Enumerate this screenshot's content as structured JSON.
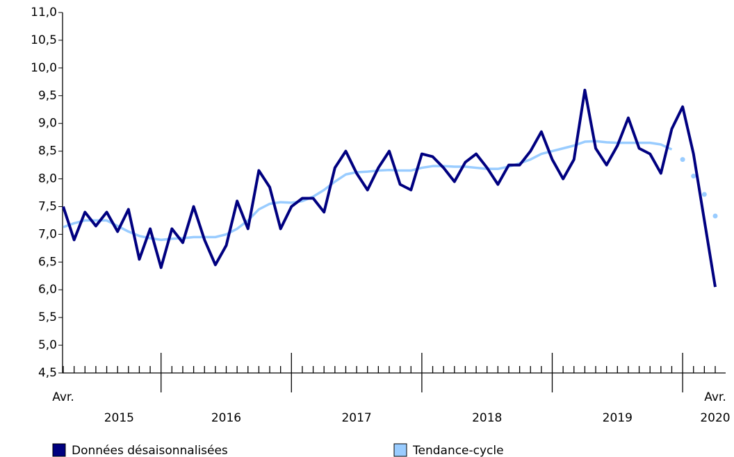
{
  "chart_data": {
    "type": "line",
    "categories": [
      "Avr.",
      null,
      null,
      null,
      null,
      null,
      null,
      null,
      null,
      null,
      null,
      null,
      null,
      null,
      null,
      null,
      null,
      null,
      null,
      null,
      null,
      null,
      null,
      null,
      null,
      null,
      null,
      null,
      null,
      null,
      null,
      null,
      null,
      null,
      null,
      null,
      null,
      null,
      null,
      null,
      null,
      null,
      null,
      null,
      null,
      null,
      null,
      null,
      null,
      null,
      null,
      null,
      null,
      null,
      null,
      null,
      null,
      null,
      null,
      null,
      "Avr."
    ],
    "years": [
      "2015",
      "2016",
      "2017",
      "2018",
      "2019",
      "2020"
    ],
    "series": [
      {
        "name": "Données désaisonnalisées",
        "color": "#000080",
        "values": [
          7.5,
          6.9,
          7.4,
          7.15,
          7.4,
          7.05,
          7.45,
          6.55,
          7.1,
          6.4,
          7.1,
          6.85,
          7.5,
          6.9,
          6.45,
          6.8,
          7.6,
          7.1,
          8.15,
          7.85,
          7.1,
          7.5,
          7.65,
          7.65,
          7.4,
          8.2,
          8.5,
          8.1,
          7.8,
          8.2,
          8.5,
          7.9,
          7.8,
          8.45,
          8.4,
          8.2,
          7.95,
          8.3,
          8.45,
          8.2,
          7.9,
          8.25,
          8.25,
          8.5,
          8.85,
          8.35,
          8.0,
          8.35,
          9.6,
          8.55,
          8.25,
          8.6,
          9.1,
          8.55,
          8.45,
          8.1,
          8.9,
          9.3,
          8.45,
          7.25,
          6.05
        ]
      },
      {
        "name": "Tendance-cycle",
        "color": "#99ccff",
        "dotted_from": 57,
        "values": [
          7.13,
          7.2,
          7.25,
          7.25,
          7.25,
          7.15,
          7.05,
          6.97,
          6.93,
          6.9,
          6.92,
          6.93,
          6.95,
          6.95,
          6.95,
          7.0,
          7.1,
          7.25,
          7.45,
          7.55,
          7.58,
          7.57,
          7.6,
          7.68,
          7.8,
          7.95,
          8.08,
          8.12,
          8.13,
          8.15,
          8.16,
          8.15,
          8.15,
          8.2,
          8.23,
          8.23,
          8.22,
          8.22,
          8.2,
          8.18,
          8.18,
          8.22,
          8.28,
          8.35,
          8.45,
          8.5,
          8.55,
          8.6,
          8.67,
          8.68,
          8.66,
          8.65,
          8.65,
          8.65,
          8.65,
          8.62,
          8.53,
          8.35,
          8.05,
          7.72,
          7.33
        ]
      }
    ],
    "ylim": [
      4.5,
      11.0
    ],
    "yticks": [
      {
        "value": 4.5,
        "label": "4,5"
      },
      {
        "value": 5.0,
        "label": "5,0"
      },
      {
        "value": 5.5,
        "label": "5,5"
      },
      {
        "value": 6.0,
        "label": "6,0"
      },
      {
        "value": 6.5,
        "label": "6,5"
      },
      {
        "value": 7.0,
        "label": "7,0"
      },
      {
        "value": 7.5,
        "label": "7,5"
      },
      {
        "value": 8.0,
        "label": "8,0"
      },
      {
        "value": 8.5,
        "label": "8,5"
      },
      {
        "value": 9.0,
        "label": "9,0"
      },
      {
        "value": 9.5,
        "label": "9,5"
      },
      {
        "value": 10.0,
        "label": "10,0"
      },
      {
        "value": 10.5,
        "label": "10,5"
      },
      {
        "value": 11.0,
        "label": "11,0"
      }
    ],
    "grid": false
  }
}
